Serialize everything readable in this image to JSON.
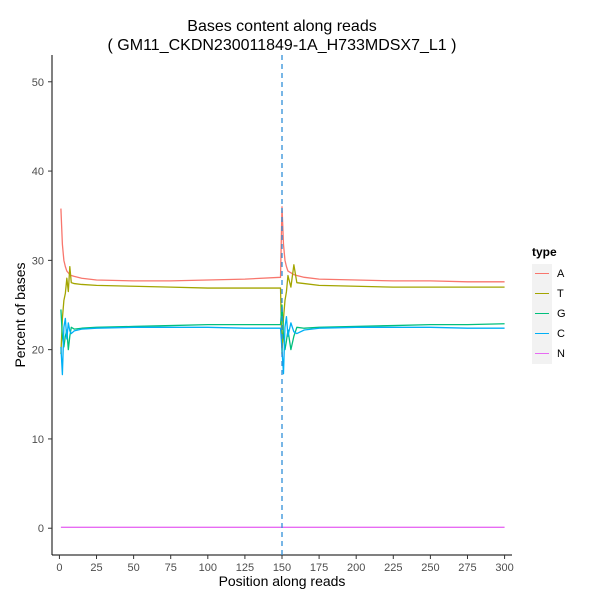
{
  "chart_data": {
    "type": "line",
    "title": "Bases content along reads",
    "subtitle": "( GM11_CKDN230011849-1A_H733MDSX7_L1 )",
    "xlabel": "Position along reads",
    "ylabel": "Percent of bases",
    "xlim": [
      -5,
      305
    ],
    "ylim": [
      -3,
      53
    ],
    "x_ticks": [
      0,
      25,
      50,
      75,
      100,
      125,
      150,
      175,
      200,
      225,
      250,
      275,
      300
    ],
    "y_ticks": [
      0,
      10,
      20,
      30,
      40,
      50
    ],
    "grid": false,
    "legend_position": "right",
    "legend_title": "type",
    "vertical_line": {
      "x": 150,
      "style": "dashed",
      "color": "#2f8fd8"
    },
    "series": [
      {
        "name": "A",
        "color": "#f8766d",
        "points": [
          [
            1,
            35.8
          ],
          [
            2,
            31.8
          ],
          [
            3,
            30
          ],
          [
            4,
            29.3
          ],
          [
            5,
            28.8
          ],
          [
            6,
            28.6
          ],
          [
            7,
            28.4
          ],
          [
            8,
            28.3
          ],
          [
            10,
            28.2
          ],
          [
            15,
            28
          ],
          [
            25,
            27.8
          ],
          [
            50,
            27.7
          ],
          [
            75,
            27.7
          ],
          [
            100,
            27.8
          ],
          [
            125,
            27.9
          ],
          [
            149,
            28.1
          ],
          [
            150,
            36
          ],
          [
            151,
            31.8
          ],
          [
            152,
            30
          ],
          [
            153,
            29.3
          ],
          [
            154,
            28.8
          ],
          [
            156,
            28.6
          ],
          [
            158,
            28.4
          ],
          [
            160,
            28.3
          ],
          [
            165,
            28.1
          ],
          [
            175,
            27.9
          ],
          [
            200,
            27.8
          ],
          [
            225,
            27.7
          ],
          [
            250,
            27.7
          ],
          [
            275,
            27.6
          ],
          [
            300,
            27.6
          ]
        ]
      },
      {
        "name": "T",
        "color": "#a3a500",
        "points": [
          [
            1,
            19.5
          ],
          [
            2,
            23.5
          ],
          [
            3,
            25.5
          ],
          [
            4,
            26.3
          ],
          [
            5,
            28
          ],
          [
            6,
            26.5
          ],
          [
            7,
            29.3
          ],
          [
            8,
            27.5
          ],
          [
            10,
            27.4
          ],
          [
            15,
            27.3
          ],
          [
            25,
            27.2
          ],
          [
            50,
            27.1
          ],
          [
            75,
            27
          ],
          [
            100,
            26.9
          ],
          [
            125,
            26.9
          ],
          [
            149,
            26.9
          ],
          [
            150,
            19.5
          ],
          [
            151,
            23.5
          ],
          [
            152,
            25.5
          ],
          [
            153,
            26.5
          ],
          [
            154,
            28.3
          ],
          [
            156,
            27
          ],
          [
            158,
            29.5
          ],
          [
            160,
            27.5
          ],
          [
            165,
            27.4
          ],
          [
            175,
            27.2
          ],
          [
            200,
            27.1
          ],
          [
            225,
            27
          ],
          [
            250,
            27
          ],
          [
            275,
            27
          ],
          [
            300,
            27
          ]
        ]
      },
      {
        "name": "G",
        "color": "#00bf7d",
        "points": [
          [
            1,
            24.5
          ],
          [
            2,
            21.5
          ],
          [
            3,
            20.3
          ],
          [
            4,
            21.5
          ],
          [
            5,
            22.2
          ],
          [
            6,
            20
          ],
          [
            7,
            21.5
          ],
          [
            8,
            22.5
          ],
          [
            10,
            22.3
          ],
          [
            15,
            22.4
          ],
          [
            25,
            22.5
          ],
          [
            50,
            22.6
          ],
          [
            75,
            22.7
          ],
          [
            100,
            22.8
          ],
          [
            125,
            22.8
          ],
          [
            149,
            22.8
          ],
          [
            150,
            25
          ],
          [
            151,
            21.5
          ],
          [
            152,
            20
          ],
          [
            153,
            21
          ],
          [
            154,
            22.2
          ],
          [
            156,
            20
          ],
          [
            158,
            21.5
          ],
          [
            160,
            22.5
          ],
          [
            165,
            22.4
          ],
          [
            175,
            22.5
          ],
          [
            200,
            22.6
          ],
          [
            225,
            22.7
          ],
          [
            250,
            22.8
          ],
          [
            275,
            22.8
          ],
          [
            300,
            22.9
          ]
        ]
      },
      {
        "name": "C",
        "color": "#00b0f6",
        "points": [
          [
            1,
            20.3
          ],
          [
            2,
            17.2
          ],
          [
            3,
            22.5
          ],
          [
            4,
            23.5
          ],
          [
            5,
            21.2
          ],
          [
            6,
            23
          ],
          [
            7,
            22.1
          ],
          [
            8,
            21.8
          ],
          [
            10,
            22.1
          ],
          [
            15,
            22.3
          ],
          [
            25,
            22.4
          ],
          [
            50,
            22.5
          ],
          [
            75,
            22.5
          ],
          [
            100,
            22.5
          ],
          [
            125,
            22.4
          ],
          [
            149,
            22.4
          ],
          [
            150,
            20
          ],
          [
            151,
            17.3
          ],
          [
            152,
            22.5
          ],
          [
            153,
            23.7
          ],
          [
            154,
            21.5
          ],
          [
            156,
            23
          ],
          [
            158,
            22
          ],
          [
            160,
            21.8
          ],
          [
            165,
            22.2
          ],
          [
            175,
            22.4
          ],
          [
            200,
            22.5
          ],
          [
            225,
            22.5
          ],
          [
            250,
            22.5
          ],
          [
            275,
            22.4
          ],
          [
            300,
            22.4
          ]
        ]
      },
      {
        "name": "N",
        "color": "#e76bf3",
        "points": [
          [
            1,
            0.1
          ],
          [
            150,
            0.1
          ],
          [
            300,
            0.1
          ]
        ]
      }
    ]
  }
}
